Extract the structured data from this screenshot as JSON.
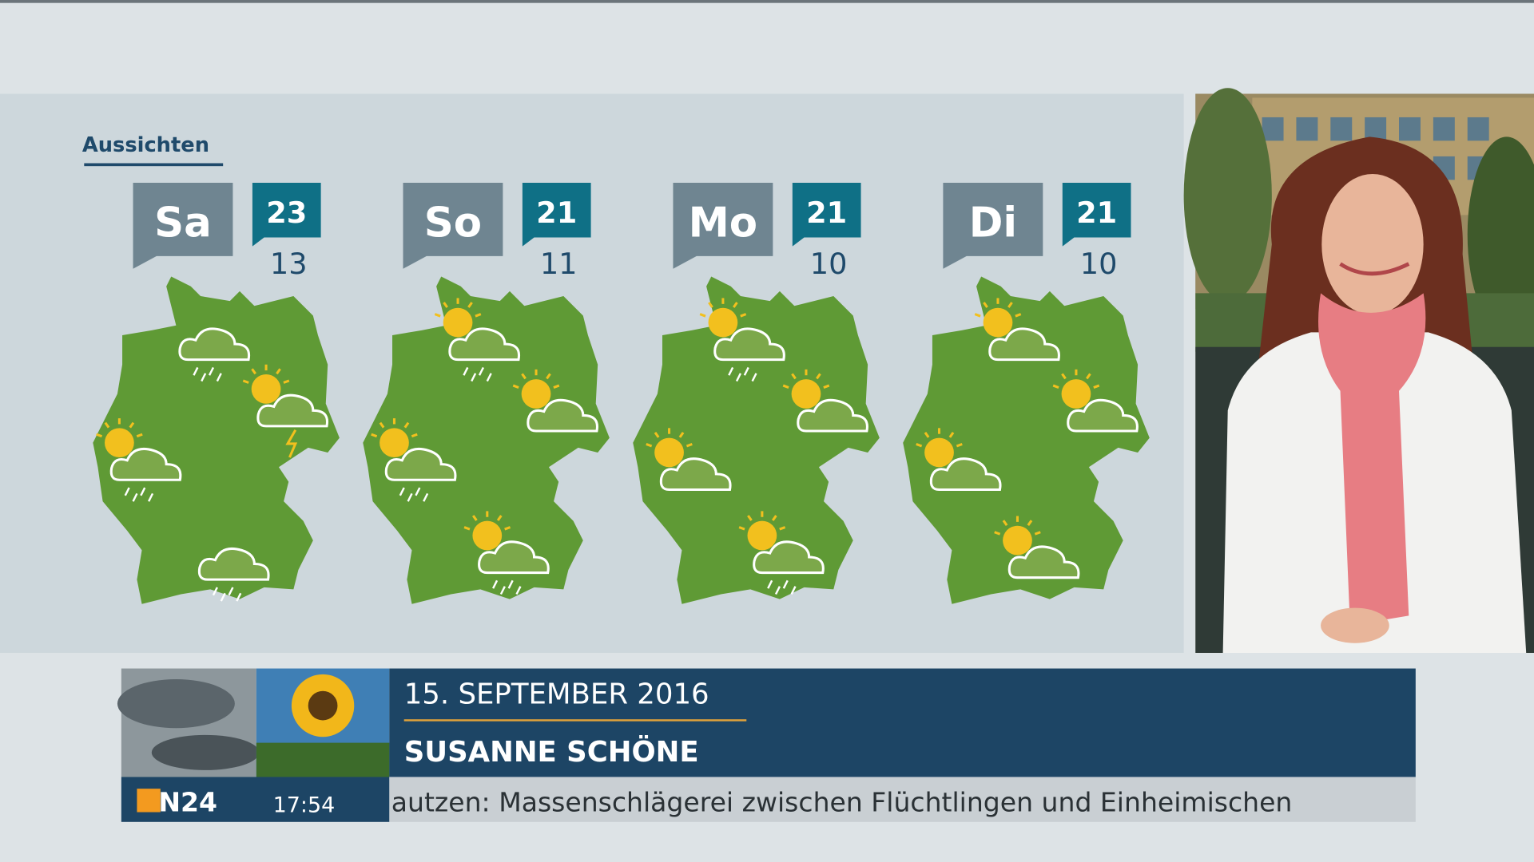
{
  "title": "Aussichten",
  "days": [
    {
      "day": "Sa",
      "max": 23,
      "min": 13
    },
    {
      "day": "So",
      "max": 21,
      "min": 11
    },
    {
      "day": "Mo",
      "max": 21,
      "min": 10
    },
    {
      "day": "Di",
      "max": 21,
      "min": 10
    }
  ],
  "lower_third": {
    "date": "15. SEPTEMBER 2016",
    "name": "SUSANNE SCHÖNE"
  },
  "ticker": {
    "logo": "N24",
    "time": "17:54",
    "text": "autzen: Massenschlägerei zwischen Flüchtlingen und Einheimischen"
  }
}
